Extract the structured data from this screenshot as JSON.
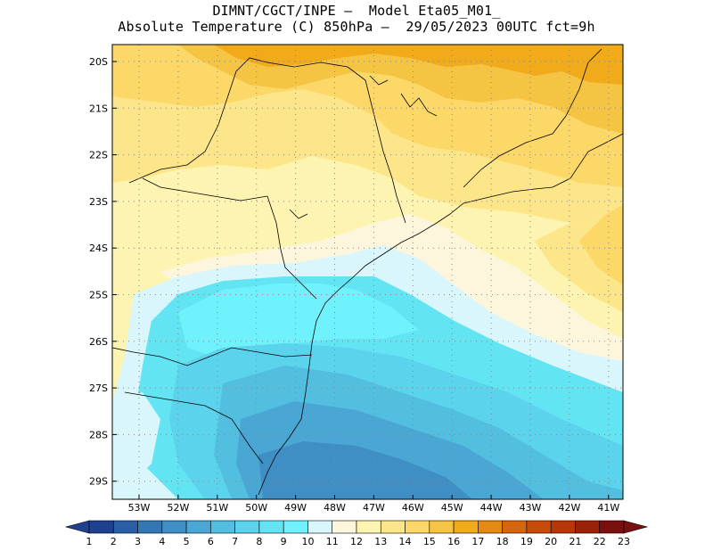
{
  "header": {
    "line1": "DIMNT/CGCT/INPE –  Model Eta05_M01_",
    "line2": "Absolute Temperature (C) 850hPa –  29/05/2023 00UTC fct=9h"
  },
  "axes": {
    "lat_labels": [
      "20S",
      "21S",
      "22S",
      "23S",
      "24S",
      "25S",
      "26S",
      "27S",
      "28S",
      "29S"
    ],
    "lon_labels": [
      "53W",
      "52W",
      "51W",
      "50W",
      "49W",
      "48W",
      "47W",
      "46W",
      "45W",
      "44W",
      "43W",
      "42W",
      "41W"
    ]
  },
  "colorbar": {
    "labels": [
      "1",
      "2",
      "3",
      "4",
      "5",
      "6",
      "7",
      "8",
      "9",
      "10",
      "11",
      "12",
      "13",
      "14",
      "15",
      "16",
      "17",
      "18",
      "19",
      "20",
      "21",
      "22",
      "23"
    ],
    "colors": [
      "#1f3f8f",
      "#2a5ea6",
      "#3577b5",
      "#3f8ec4",
      "#4aa7d3",
      "#52bfe0",
      "#5cd3ec",
      "#62e4f3",
      "#6ff2fb",
      "#d8f6fb",
      "#fdf6dc",
      "#fcf4b0",
      "#fde68a",
      "#fbd867",
      "#f5c443",
      "#f0aa1a",
      "#e58a11",
      "#d5660c",
      "#c94b0a",
      "#b9360b",
      "#9b2209",
      "#7a0f10"
    ]
  },
  "map": {
    "background_color": "#5ee8f4",
    "field_colors": {
      "ocean_deep": "#3f8ec4",
      "ocean_mid": "#4aa7d3",
      "cool": "#5cd3ec",
      "cyan": "#62e4f3",
      "pale_blue": "#d8f6fb",
      "cream": "#fdf6dc",
      "pale_yellow": "#fcf4b0",
      "yellow": "#fde68a",
      "warm_yellow": "#fbd867",
      "orange_yellow": "#f5c443",
      "orange": "#f0aa1a"
    }
  }
}
